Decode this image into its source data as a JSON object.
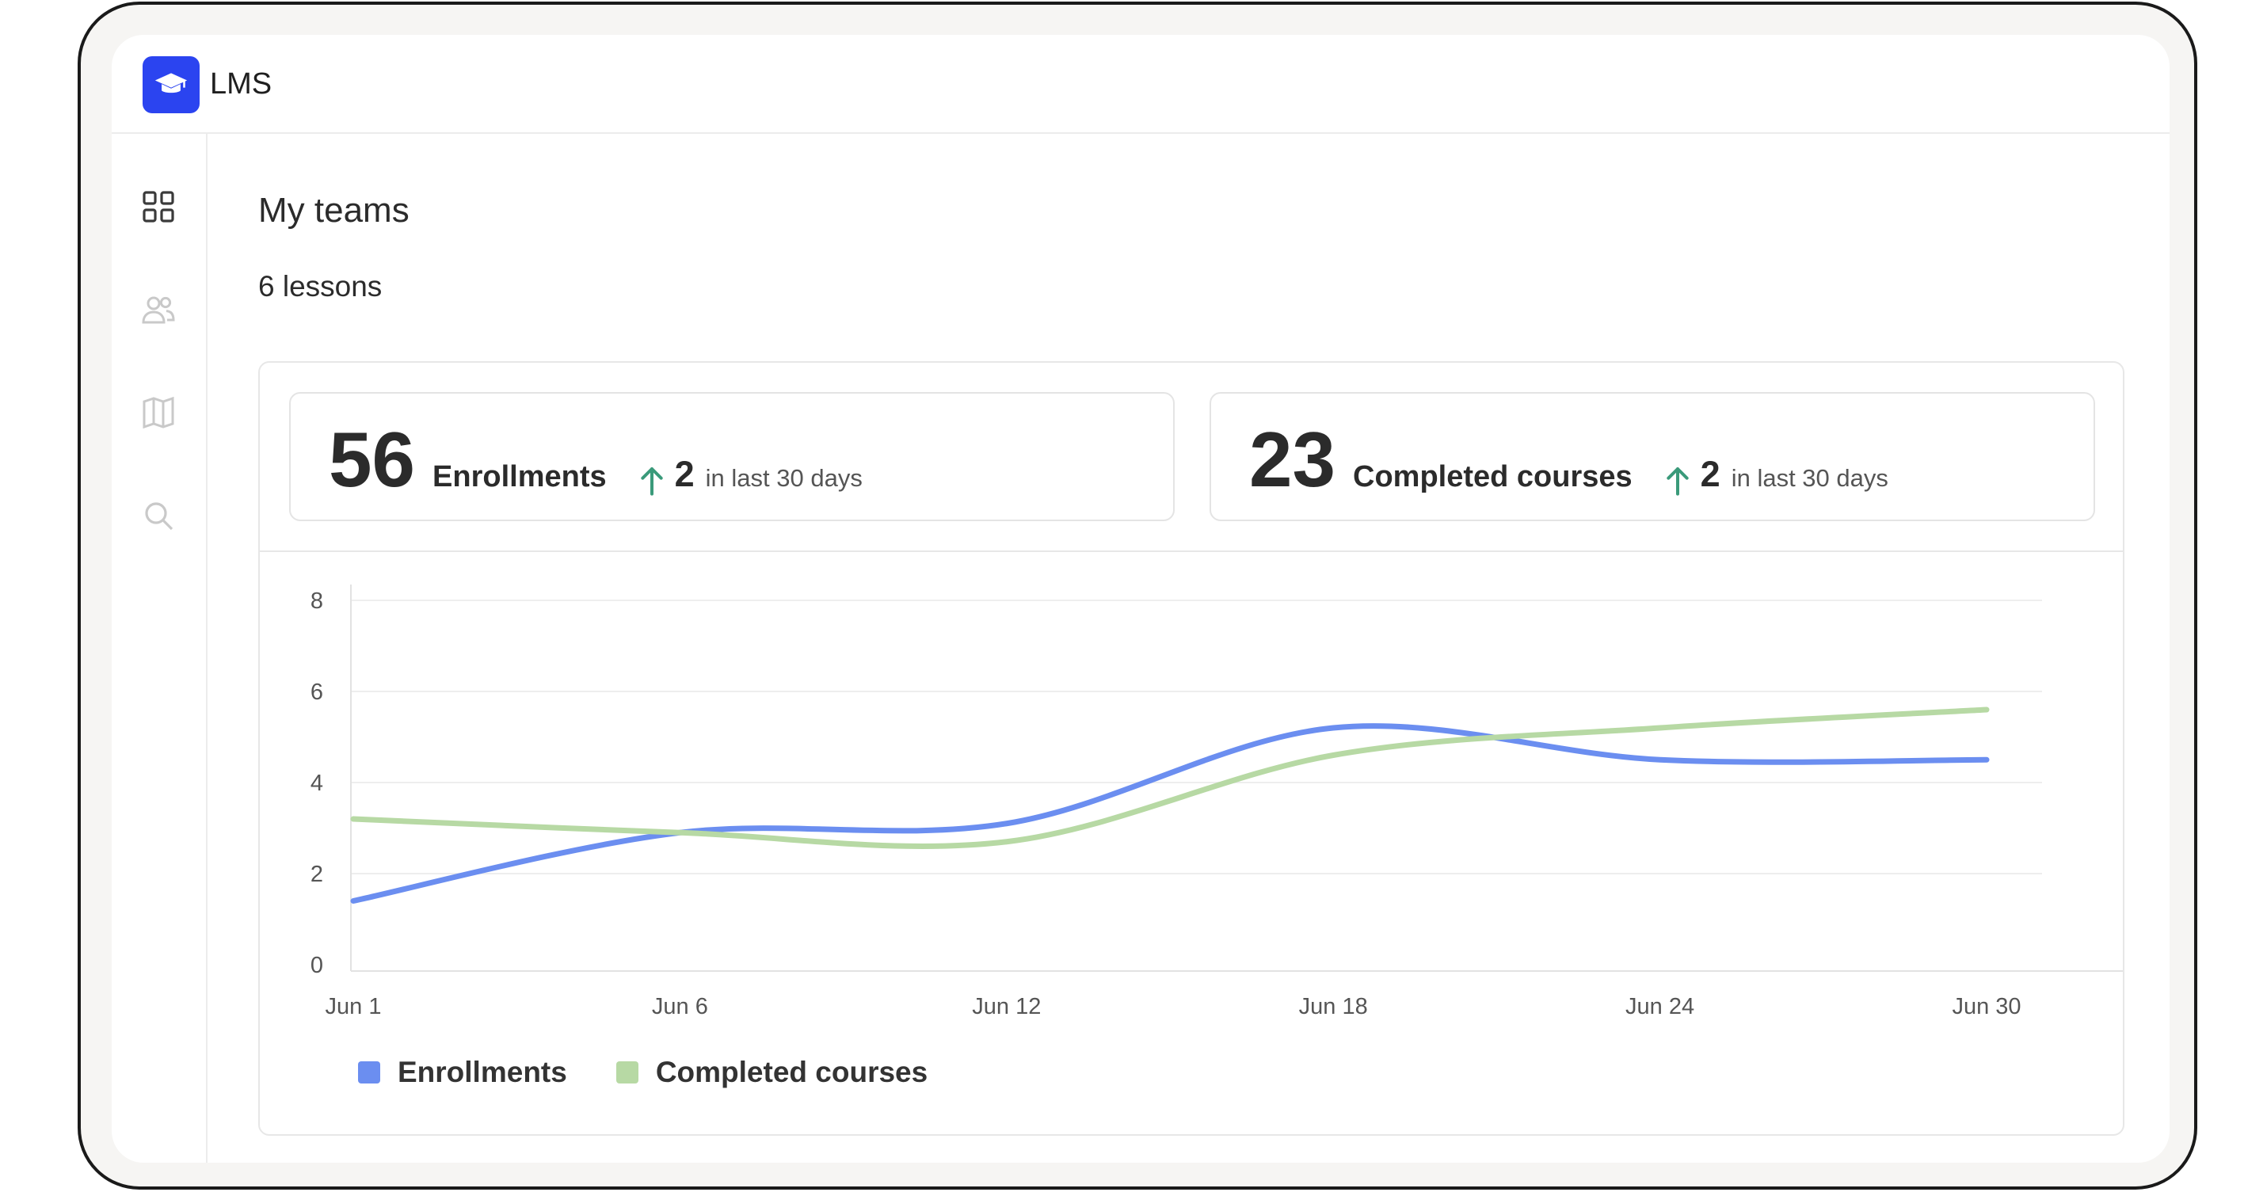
{
  "app": {
    "title": "LMS",
    "logo_icon": "graduation-cap-icon",
    "accent": "#2b44f0"
  },
  "sidebar": {
    "items": [
      {
        "icon": "dashboard-grid-icon",
        "active": true
      },
      {
        "icon": "users-icon",
        "active": false
      },
      {
        "icon": "book-icon",
        "active": false
      },
      {
        "icon": "search-icon",
        "active": false
      }
    ]
  },
  "page": {
    "title": "My teams",
    "subtitle": "6 lessons"
  },
  "stats": [
    {
      "value": "56",
      "label": "Enrollments",
      "trend_value": "2",
      "trend_text": "in last 30 days",
      "trend_icon": "arrow-up-icon"
    },
    {
      "value": "23",
      "label": "Completed courses",
      "trend_value": "2",
      "trend_text": "in last 30 days",
      "trend_icon": "arrow-up-icon"
    }
  ],
  "chart_data": {
    "type": "line",
    "x_ticks": [
      "Jun 1",
      "Jun 6",
      "Jun 12",
      "Jun 18",
      "Jun 24",
      "Jun 30"
    ],
    "x": [
      "Jun 1",
      "Jun 6",
      "Jun 12",
      "Jun 18",
      "Jun 24",
      "Jun 30"
    ],
    "ylim": [
      0,
      8
    ],
    "y_ticks": [
      0,
      2,
      4,
      6,
      8
    ],
    "grid": true,
    "legend": "bottom-left",
    "series": [
      {
        "name": "Enrollments",
        "color": "#6b8ef0",
        "values": [
          1.4,
          2.9,
          3.1,
          5.2,
          4.5,
          4.5
        ]
      },
      {
        "name": "Completed courses",
        "color": "#b7d9a4",
        "values": [
          3.2,
          2.9,
          2.7,
          4.6,
          5.2,
          5.6
        ]
      }
    ]
  }
}
